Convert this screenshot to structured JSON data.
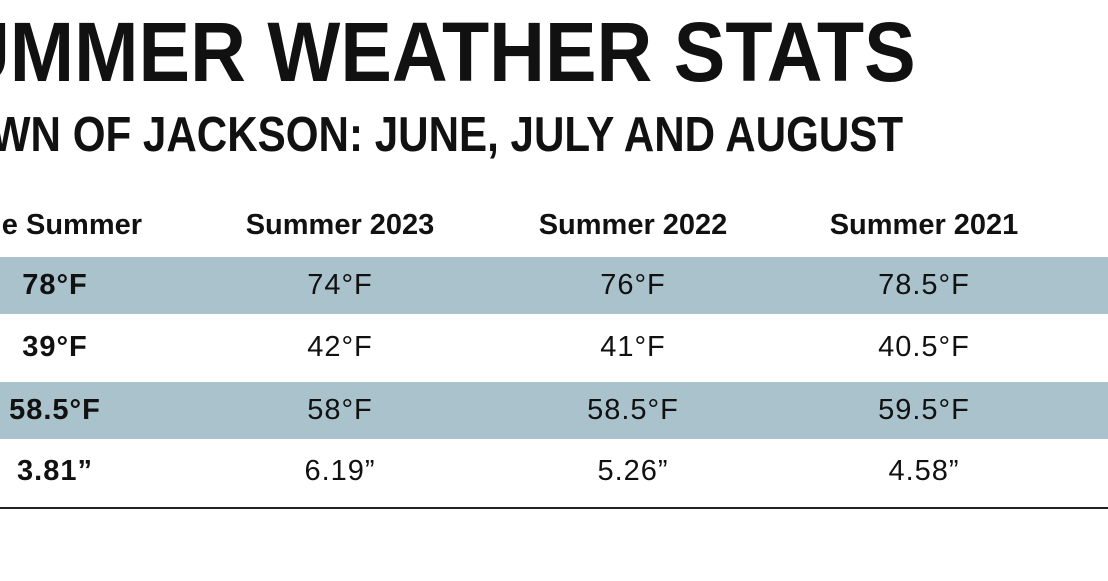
{
  "title": "UMMER WEATHER STATS",
  "subtitle": "OWN OF JACKSON: JUNE, JULY AND AUGUST",
  "table": {
    "headers": [
      "age Summer",
      "Summer 2023",
      "Summer 2022",
      "Summer 2021"
    ],
    "rows": [
      [
        "78°F",
        "74°F",
        "76°F",
        "78.5°F"
      ],
      [
        "39°F",
        "42°F",
        "41°F",
        "40.5°F"
      ],
      [
        "58.5°F",
        "58°F",
        "58.5°F",
        "59.5°F"
      ],
      [
        "3.81”",
        "6.19”",
        "5.26”",
        "4.58”"
      ]
    ]
  },
  "colors": {
    "shaded_row": "#a9c2cb",
    "text": "#111111",
    "rule": "#222222"
  }
}
